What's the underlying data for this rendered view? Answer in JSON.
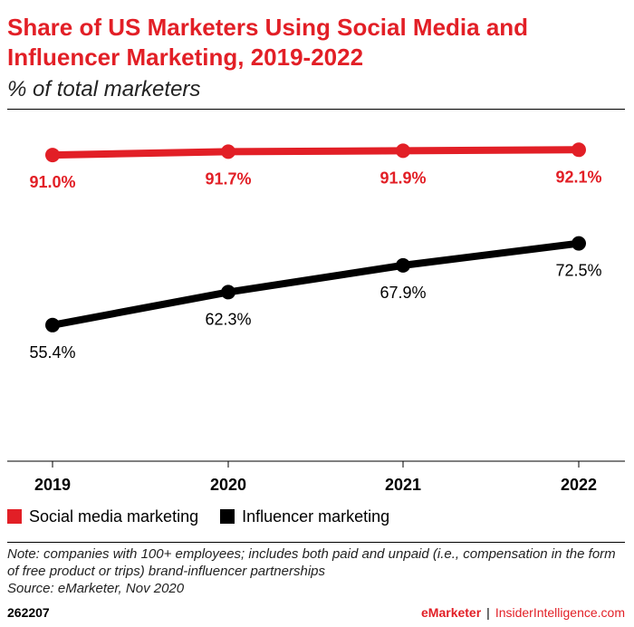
{
  "header": {
    "title": "Share of US Marketers Using Social Media and Influencer Marketing, 2019-2022",
    "subtitle": "% of total marketers"
  },
  "chart_data": {
    "type": "line",
    "title": "Share of US Marketers Using Social Media and Influencer Marketing, 2019-2022",
    "subtitle": "% of total marketers",
    "x": [
      "2019",
      "2020",
      "2021",
      "2022"
    ],
    "ylim": [
      40,
      95
    ],
    "grid": false,
    "legend": "bottom-left",
    "series": [
      {
        "name": "Social media marketing",
        "color": "#e21f26",
        "values": [
          91.0,
          91.7,
          91.9,
          92.1
        ],
        "labels": [
          "91.0%",
          "91.7%",
          "91.9%",
          "92.1%"
        ]
      },
      {
        "name": "Influencer marketing",
        "color": "#000000",
        "values": [
          55.4,
          62.3,
          67.9,
          72.5
        ],
        "labels": [
          "55.4%",
          "62.3%",
          "67.9%",
          "72.5%"
        ]
      }
    ]
  },
  "legend": {
    "items": [
      {
        "label": "Social media marketing",
        "color": "#e21f26"
      },
      {
        "label": "Influencer marketing",
        "color": "#000000"
      }
    ]
  },
  "notes": {
    "note": "Note: companies with 100+ employees; includes both paid and unpaid (i.e., compensation in the form of free product or trips) brand-influencer partnerships",
    "source": "Source: eMarketer, Nov 2020"
  },
  "footer": {
    "id": "262207",
    "brand_emarketer": "eMarketer",
    "brand_sep": "|",
    "brand_insider": "InsiderIntelligence.com"
  }
}
